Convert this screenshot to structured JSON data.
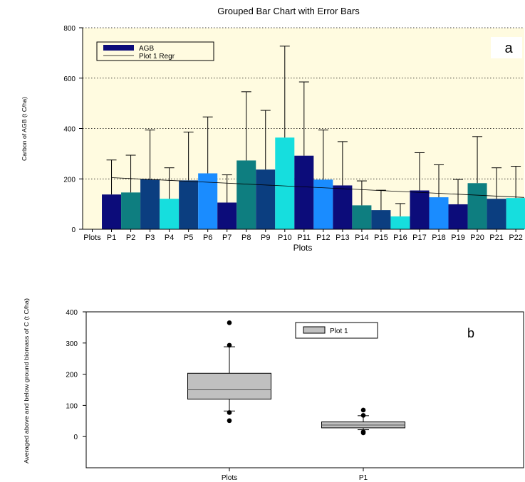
{
  "chart_data": [
    {
      "type": "bar",
      "panel_letter": "a",
      "title": "Grouped Bar Chart with Error Bars",
      "xlabel": "Plots",
      "ylabel": "Carbon of AGB (t C/ha)",
      "ylim": [
        0,
        800
      ],
      "yticks": [
        0,
        200,
        400,
        600,
        800
      ],
      "grid": "horizontal dotted",
      "legend_position": "top-left",
      "background": "#fffbe0",
      "categories": [
        "Plots",
        "P1",
        "P2",
        "P3",
        "P4",
        "P5",
        "P6",
        "P7",
        "P8",
        "P9",
        "P10",
        "P11",
        "P12",
        "P13",
        "P14",
        "P15",
        "P16",
        "P17",
        "P18",
        "P19",
        "P20",
        "P21",
        "P22"
      ],
      "series": [
        {
          "name": "AGB",
          "values": [
            null,
            138,
            146,
            198,
            121,
            194,
            222,
            106,
            273,
            237,
            364,
            292,
            197,
            174,
            95,
            76,
            51,
            154,
            127,
            99,
            183,
            121,
            124
          ],
          "error_upper": [
            null,
            275,
            294,
            394,
            244,
            386,
            446,
            216,
            546,
            472,
            727,
            585,
            394,
            348,
            192,
            155,
            102,
            304,
            256,
            198,
            368,
            244,
            250
          ],
          "colors": [
            "#0c0c7a",
            "#0c0c7a",
            "#0e7e80",
            "#0b3e80",
            "#16dede",
            "#0b3e80",
            "#1a8cff",
            "#0c0c7a",
            "#0e7e80",
            "#0b3e80",
            "#16dede",
            "#0c0c7a",
            "#1a8cff",
            "#0c0c7a",
            "#0e7e80",
            "#0b3e80",
            "#16dede",
            "#0c0c7a",
            "#1a8cff",
            "#0c0c7a",
            "#0e7e80",
            "#0b3e80",
            "#16dede"
          ]
        },
        {
          "name": "Plot 1 Regr",
          "type": "line",
          "x": [
            "P1",
            "P22"
          ],
          "values": [
            205,
            128
          ]
        }
      ]
    },
    {
      "type": "box",
      "panel_letter": "b",
      "ylabel": "Averaged above and below ground biomass of C (t C/ha)",
      "ylim": [
        -100,
        400
      ],
      "yticks": [
        0,
        100,
        200,
        300,
        400
      ],
      "legend_position": "top-center",
      "categories": [
        "Plots",
        "P1"
      ],
      "series": [
        {
          "name": "Plot 1",
          "color": "#c0c0c0",
          "boxes": [
            {
              "category": "Plots",
              "whisker_low": 82,
              "q1": 120,
              "median": 150,
              "q3": 203,
              "whisker_high": 288,
              "outliers": [
                51,
                77,
                293,
                365
              ]
            },
            {
              "category": "P1",
              "whisker_low": 22,
              "q1": 28,
              "median": 37,
              "q3": 47,
              "whisker_high": 67,
              "outliers": [
                12,
                15,
                68,
                85
              ]
            }
          ]
        }
      ]
    }
  ],
  "ui": {
    "title": "Grouped Bar Chart with Error Bars",
    "panel_a_letter": "a",
    "panel_b_letter": "b",
    "a_xlabel": "Plots",
    "a_ylabel": "Carbon of AGB (t C/ha)",
    "b_ylabel": "Averaged above and below ground biomass of C (t C/ha)",
    "legend_a_bar": "AGB",
    "legend_a_line": "Plot 1 Regr",
    "legend_b_box": "Plot 1"
  }
}
